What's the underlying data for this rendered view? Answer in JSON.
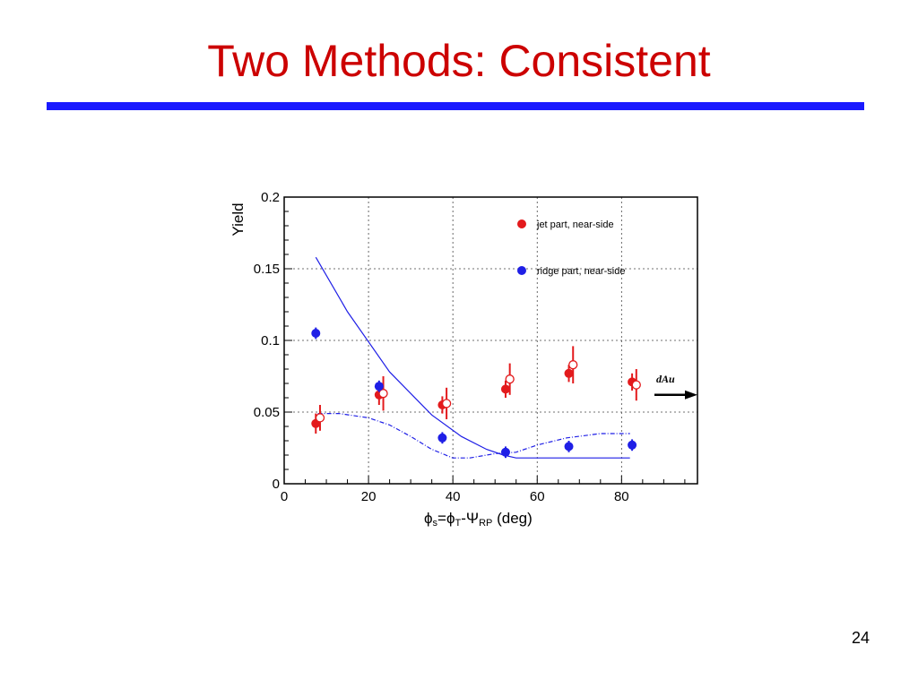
{
  "slide": {
    "title": "Two Methods: Consistent",
    "page_number": "24",
    "title_color": "#cc0000",
    "rule_color": "#1a1aff"
  },
  "chart_data": {
    "type": "scatter",
    "ylabel": "Yield",
    "xlabel": {
      "parts": [
        "ϕ",
        "s",
        "=ϕ",
        "T",
        "-Ψ",
        "RP",
        " (deg)"
      ]
    },
    "xlim": [
      0,
      98
    ],
    "ylim": [
      0,
      0.2
    ],
    "x_ticks": [
      0,
      20,
      40,
      60,
      80
    ],
    "y_ticks": [
      0,
      0.05,
      0.1,
      0.15,
      0.2
    ],
    "y_tick_labels": [
      "0",
      "0.05",
      "0.1",
      "0.15",
      "0.2"
    ],
    "grid": true,
    "legend_position": "top-right",
    "legend": [
      {
        "label": "jet part, near-side",
        "color": "#e31a1c"
      },
      {
        "label": "ridge part, near-side",
        "color": "#1f1fe6"
      }
    ],
    "series": [
      {
        "name": "jet part, near-side",
        "marker": "filled-circle",
        "color": "#e31a1c",
        "points": [
          {
            "x": 7.5,
            "y": 0.042,
            "err": 0.007
          },
          {
            "x": 22.5,
            "y": 0.062,
            "err": 0.007
          },
          {
            "x": 37.5,
            "y": 0.055,
            "err": 0.006
          },
          {
            "x": 52.5,
            "y": 0.066,
            "err": 0.006
          },
          {
            "x": 67.5,
            "y": 0.077,
            "err": 0.006
          },
          {
            "x": 82.5,
            "y": 0.071,
            "err": 0.006
          }
        ]
      },
      {
        "name": "",
        "marker": "open-circle",
        "color": "#e31a1c",
        "points": [
          {
            "x": 8.5,
            "y": 0.046,
            "err": 0.009
          },
          {
            "x": 23.5,
            "y": 0.063,
            "err": 0.012
          },
          {
            "x": 38.5,
            "y": 0.056,
            "err": 0.011
          },
          {
            "x": 53.5,
            "y": 0.073,
            "err": 0.011
          },
          {
            "x": 68.5,
            "y": 0.083,
            "err": 0.013
          },
          {
            "x": 83.5,
            "y": 0.069,
            "err": 0.011
          }
        ]
      },
      {
        "name": "ridge part, near-side",
        "marker": "filled-circle",
        "color": "#1f1fe6",
        "points": [
          {
            "x": 7.5,
            "y": 0.105,
            "err": 0.004
          },
          {
            "x": 22.5,
            "y": 0.068,
            "err": 0.004
          },
          {
            "x": 37.5,
            "y": 0.032,
            "err": 0.004
          },
          {
            "x": 52.5,
            "y": 0.022,
            "err": 0.004
          },
          {
            "x": 67.5,
            "y": 0.026,
            "err": 0.004
          },
          {
            "x": 82.5,
            "y": 0.027,
            "err": 0.004
          }
        ]
      }
    ],
    "curves": [
      {
        "style": "solid",
        "color": "#1f1fe6",
        "points": [
          [
            7.5,
            0.158
          ],
          [
            15,
            0.12
          ],
          [
            25,
            0.078
          ],
          [
            35,
            0.048
          ],
          [
            42,
            0.033
          ],
          [
            48,
            0.024
          ],
          [
            52,
            0.02
          ],
          [
            55,
            0.018
          ],
          [
            65,
            0.018
          ],
          [
            82,
            0.018
          ]
        ]
      },
      {
        "style": "dash-dot",
        "color": "#1f1fe6",
        "points": [
          [
            8,
            0.049
          ],
          [
            13,
            0.049
          ],
          [
            20,
            0.046
          ],
          [
            25,
            0.041
          ],
          [
            30,
            0.033
          ],
          [
            35,
            0.024
          ],
          [
            40,
            0.018
          ],
          [
            44,
            0.018
          ],
          [
            50,
            0.021
          ],
          [
            55,
            0.022
          ],
          [
            60,
            0.027
          ],
          [
            67,
            0.032
          ],
          [
            75,
            0.035
          ],
          [
            82,
            0.035
          ]
        ]
      }
    ],
    "annotation": {
      "text": "dAu",
      "y": 0.062
    }
  }
}
